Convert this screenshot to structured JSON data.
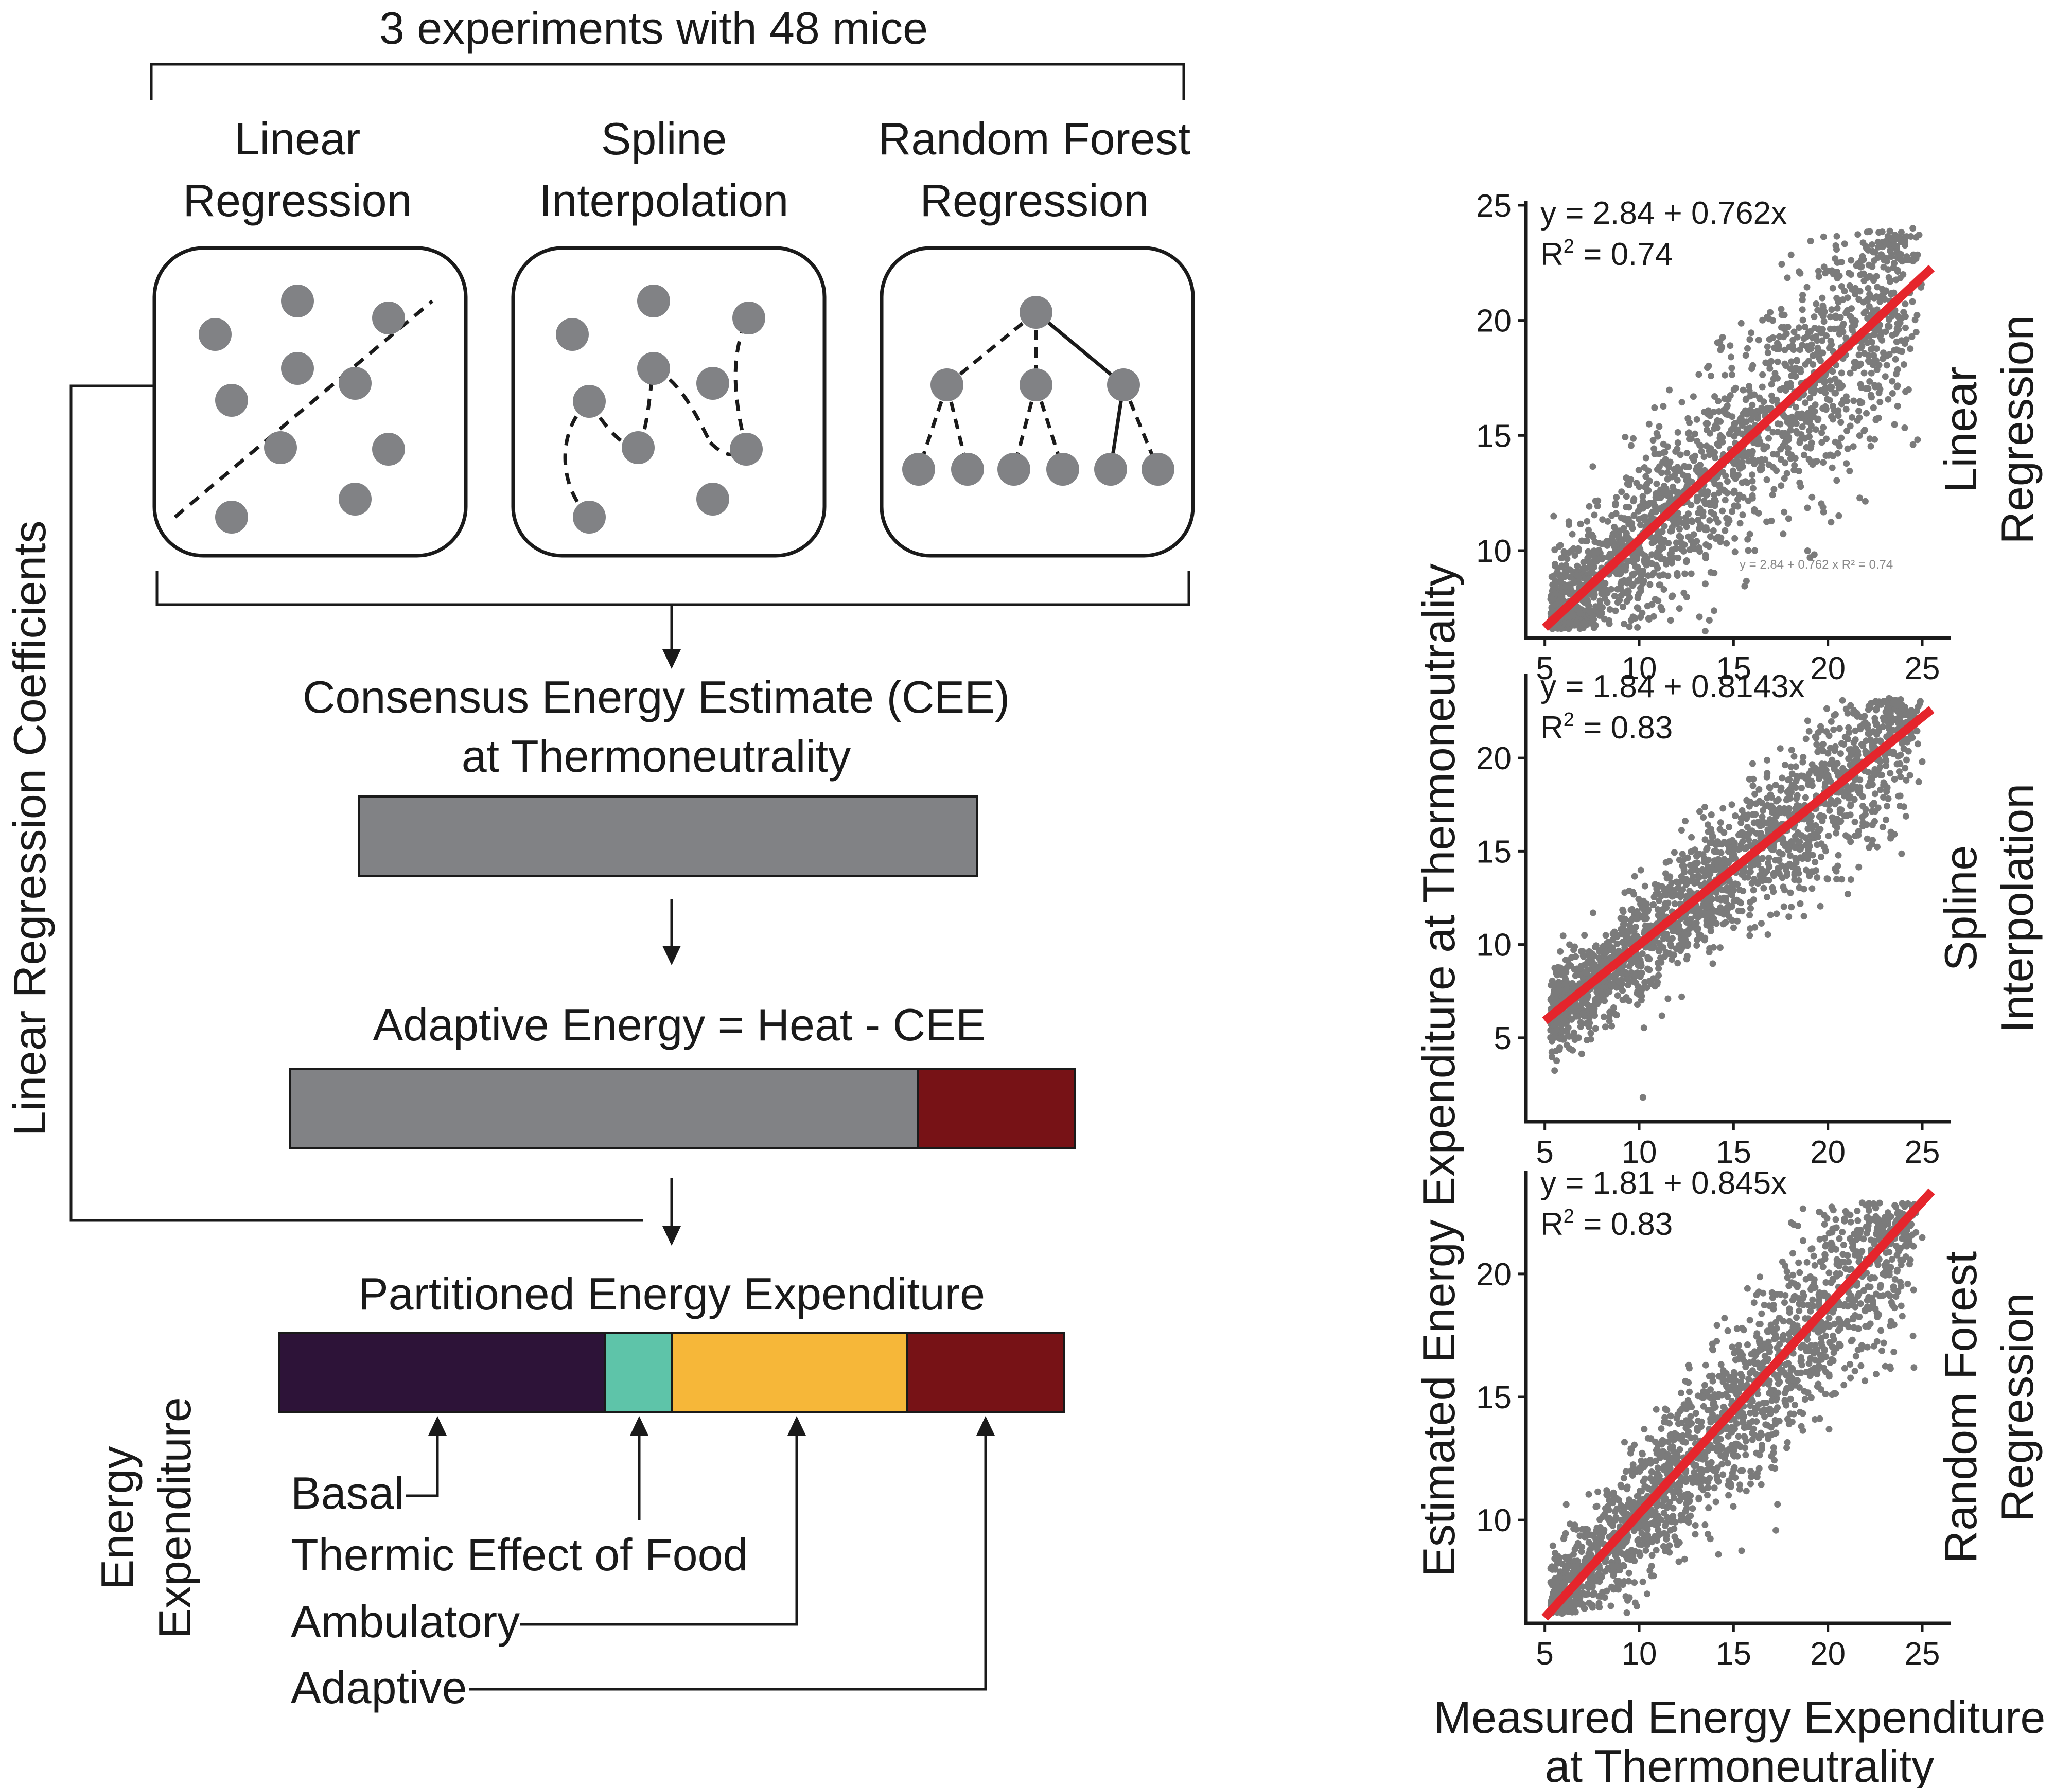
{
  "colors": {
    "grey": "#818285",
    "dark_red": "#771216",
    "basal_purple": "#2d1338",
    "tef_teal": "#5ec4a9",
    "ambulatory_orange": "#f6b739",
    "fit_red": "#e5252c",
    "point_grey": "#7b7b7b"
  },
  "top_label": "3 experiments with 48 mice",
  "methods": [
    {
      "line1": "Linear",
      "line2": "Regression"
    },
    {
      "line1": "Spline",
      "line2": "Interpolation"
    },
    {
      "line1": "Random Forest",
      "line2": "Regression"
    }
  ],
  "left_vertical_label": "Linear Regression Coefficients",
  "cee": {
    "line1": "Consensus Energy Estimate (CEE)",
    "line2": "at Thermoneutrality"
  },
  "adaptive_formula": "Adaptive Energy = Heat - CEE",
  "adaptive_fraction": 0.8,
  "partitioned_title": "Partitioned Energy Expenditure",
  "partition_fractions": {
    "basal": 0.415,
    "tef": 0.085,
    "ambulatory": 0.3,
    "adaptive": 0.2
  },
  "legend_title": {
    "line1": "Energy",
    "line2": "Expenditure"
  },
  "legend_items": [
    "Basal",
    "Thermic Effect of Food",
    "Ambulatory",
    "Adaptive"
  ],
  "y_axis_label": "Estimated Energy Expenditure at Thermoneutrality",
  "x_axis_label": {
    "line1": "Measured Energy Expenditure",
    "line2": "at Thermoneutrality"
  },
  "chart_data": [
    {
      "type": "scatter",
      "row_label": {
        "line1": "Linear",
        "line2": "Regression"
      },
      "equation": "y = 2.84 + 0.762x",
      "r2_prefix": "R",
      "r2_sup": "2",
      "r2_value": " = 0.74",
      "faint_equation": "y = 2.84 + 0.762 x   R² = 0.74",
      "intercept": 2.84,
      "slope": 0.762,
      "r2": 0.74,
      "fit_x": [
        5,
        25.5
      ],
      "xlim": [
        4,
        26.5
      ],
      "ylim": [
        6.2,
        25.2
      ],
      "x_ticks": [
        5,
        10,
        15,
        20,
        25
      ],
      "y_ticks": [
        10,
        15,
        20,
        25
      ],
      "noise_sd": 1.85,
      "outliers": [
        [
          20.8,
          19.5
        ],
        [
          24.5,
          24.0
        ],
        [
          13.5,
          6.5
        ]
      ]
    },
    {
      "type": "scatter",
      "row_label": {
        "line1": "Spline",
        "line2": "Interpolation"
      },
      "equation": "y = 1.84 + 0.8143x",
      "r2_prefix": "R",
      "r2_sup": "2",
      "r2_value": " = 0.83",
      "faint_equation": "",
      "intercept": 1.84,
      "slope": 0.8143,
      "r2": 0.83,
      "fit_x": [
        5,
        25.5
      ],
      "xlim": [
        4,
        26.5
      ],
      "ylim": [
        0.5,
        24.5
      ],
      "x_ticks": [
        5,
        10,
        15,
        20,
        25
      ],
      "y_ticks": [
        5,
        10,
        15,
        20
      ],
      "noise_sd": 1.45,
      "outliers": [
        [
          10.2,
          1.8
        ],
        [
          25.0,
          19.8
        ],
        [
          6.5,
          5.1
        ]
      ]
    },
    {
      "type": "scatter",
      "row_label": {
        "line1": "Random Forest",
        "line2": "Regression"
      },
      "equation": "y = 1.81 + 0.845x",
      "r2_prefix": "R",
      "r2_sup": "2",
      "r2_value": " = 0.83",
      "faint_equation": "",
      "intercept": 1.81,
      "slope": 0.845,
      "r2": 0.83,
      "fit_x": [
        5,
        25.5
      ],
      "xlim": [
        4,
        26.5
      ],
      "ylim": [
        5.8,
        24.2
      ],
      "x_ticks": [
        5,
        10,
        15,
        20,
        25
      ],
      "y_ticks": [
        10,
        15,
        20
      ],
      "noise_sd": 1.45,
      "outliers": [
        [
          14.2,
          8.6
        ],
        [
          22.0,
          22.8
        ]
      ]
    }
  ]
}
